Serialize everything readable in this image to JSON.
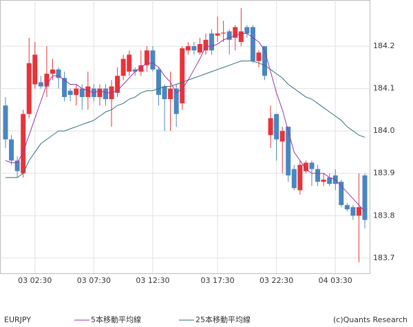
{
  "chart_data": {
    "type": "candlestick",
    "symbol": "EURJPY",
    "copyright": "(c)Quants Research",
    "categories": [
      null,
      null,
      null,
      null,
      null,
      "03 02:30",
      null,
      null,
      null,
      null,
      null,
      null,
      null,
      null,
      null,
      "03 07:30",
      null,
      null,
      null,
      null,
      null,
      null,
      null,
      null,
      null,
      "03 12:30",
      null,
      null,
      null,
      null,
      null,
      null,
      null,
      null,
      null,
      null,
      "03 17:30",
      null,
      null,
      null,
      null,
      null,
      null,
      null,
      null,
      null,
      "03 22:30",
      null,
      null,
      null,
      null,
      null,
      null,
      null,
      null,
      null,
      "04 03:30",
      null,
      null,
      null,
      null,
      null
    ],
    "open": [
      184.06,
      183.98,
      183.93,
      183.9,
      184.04,
      184.11,
      184.115,
      184.105,
      184.135,
      184.145,
      184.125,
      184.095,
      184.085,
      184.1,
      184.08,
      184.1,
      184.08,
      184.1,
      184.075,
      184.09,
      184.13,
      184.14,
      184.145,
      184.14,
      184.155,
      184.19,
      184.145,
      184.105,
      184.075,
      184.1,
      184.065,
      184.19,
      184.2,
      184.185,
      184.19,
      184.23,
      184.225,
      184.23,
      184.235,
      184.22,
      184.21,
      184.245,
      184.245,
      184.165,
      184.2,
      183.99,
      184.04,
      183.975,
      184.01,
      183.91,
      183.86,
      183.905,
      183.925,
      183.91,
      183.88,
      183.89,
      183.895,
      183.88,
      183.825,
      183.82,
      183.8,
      183.895
    ],
    "high": [
      184.08,
      183.99,
      183.94,
      184.05,
      184.22,
      184.21,
      184.13,
      184.2,
      184.17,
      184.15,
      184.14,
      184.1,
      184.11,
      184.11,
      184.14,
      184.11,
      184.11,
      184.11,
      184.12,
      184.15,
      184.18,
      184.19,
      184.15,
      184.19,
      184.2,
      184.2,
      184.15,
      184.11,
      184.14,
      184.11,
      184.2,
      184.21,
      184.21,
      184.22,
      184.23,
      184.24,
      184.27,
      184.26,
      184.24,
      184.25,
      184.29,
      184.25,
      184.25,
      184.19,
      184.2,
      184.06,
      184.04,
      184.01,
      184.01,
      183.92,
      183.93,
      183.93,
      183.93,
      183.92,
      183.9,
      183.9,
      183.91,
      183.885,
      183.83,
      183.825,
      183.9,
      183.9
    ],
    "low": [
      183.96,
      183.92,
      183.89,
      183.89,
      184.03,
      184.1,
      184.1,
      184.08,
      184.12,
      184.1,
      184.07,
      184.07,
      184.06,
      184.05,
      184.05,
      184.07,
      184.06,
      184.06,
      184.01,
      184.08,
      184.12,
      184.13,
      184.13,
      184.13,
      184.14,
      184.14,
      184.06,
      184.0,
      184.0,
      184.01,
      184.05,
      184.18,
      184.18,
      184.18,
      184.18,
      184.18,
      184.21,
      184.21,
      184.18,
      184.19,
      184.2,
      184.22,
      184.16,
      184.15,
      184.12,
      183.96,
      183.93,
      183.9,
      183.88,
      183.86,
      183.85,
      183.9,
      183.87,
      183.87,
      183.87,
      183.87,
      183.86,
      183.82,
      183.81,
      183.79,
      183.69,
      183.77
    ],
    "close": [
      183.98,
      183.93,
      183.905,
      184.04,
      184.16,
      184.18,
      184.105,
      184.135,
      184.145,
      184.125,
      184.08,
      184.085,
      184.1,
      184.08,
      184.105,
      184.08,
      184.1,
      184.075,
      184.105,
      184.13,
      184.17,
      184.18,
      184.14,
      184.155,
      184.19,
      184.145,
      184.085,
      184.075,
      184.1,
      184.04,
      184.195,
      184.2,
      184.19,
      184.205,
      184.215,
      184.19,
      184.23,
      184.232,
      184.215,
      184.245,
      184.235,
      184.23,
      184.165,
      184.185,
      184.13,
      184.03,
      183.98,
      184.0,
      183.895,
      183.865,
      183.92,
      183.925,
      183.91,
      183.88,
      183.885,
      183.875,
      183.875,
      183.825,
      183.815,
      183.8,
      183.82,
      183.79
    ],
    "up_color": "#e8333a",
    "down_color": "#4a86c0",
    "lines": [
      {
        "name": "5本移動平均線",
        "color": "#9933aa",
        "values": [
          183.93,
          183.925,
          183.925,
          183.95,
          183.99,
          184.03,
          184.07,
          184.11,
          184.13,
          184.13,
          184.12,
          184.11,
          184.11,
          184.1,
          184.095,
          184.09,
          184.095,
          184.09,
          184.09,
          184.095,
          184.11,
          184.125,
          184.14,
          184.15,
          184.16,
          184.16,
          184.15,
          184.13,
          184.115,
          184.09,
          184.1,
          184.12,
          184.145,
          184.17,
          184.2,
          184.2,
          184.205,
          184.215,
          184.22,
          184.225,
          184.23,
          184.23,
          184.22,
          184.21,
          184.19,
          184.14,
          184.09,
          184.05,
          184.0,
          183.95,
          183.93,
          183.91,
          183.9,
          183.9,
          183.9,
          183.89,
          183.885,
          183.87,
          183.855,
          183.84,
          183.825,
          183.81
        ]
      },
      {
        "name": "25本移動平均線",
        "color": "#2e6e7a",
        "values": [
          183.89,
          183.89,
          183.89,
          183.9,
          183.93,
          183.95,
          183.97,
          183.98,
          183.99,
          184.0,
          184.0,
          184.005,
          184.01,
          184.015,
          184.02,
          184.025,
          184.035,
          184.045,
          184.05,
          184.06,
          184.065,
          184.075,
          184.08,
          184.09,
          184.095,
          184.095,
          184.1,
          184.105,
          184.105,
          184.11,
          184.115,
          184.12,
          184.125,
          184.13,
          184.135,
          184.14,
          184.145,
          184.15,
          184.155,
          184.16,
          184.165,
          184.165,
          184.165,
          184.16,
          184.155,
          184.145,
          184.135,
          184.125,
          184.11,
          184.1,
          184.09,
          184.08,
          184.075,
          184.065,
          184.055,
          184.045,
          184.035,
          184.025,
          184.01,
          184.0,
          183.99,
          183.985
        ]
      }
    ],
    "ylim": [
      183.664,
      184.309
    ],
    "yticks": [
      183.7,
      183.8,
      183.9,
      {
        "value": 184,
        "label": "184.0"
      },
      184.1,
      184.2
    ],
    "grid": true
  }
}
